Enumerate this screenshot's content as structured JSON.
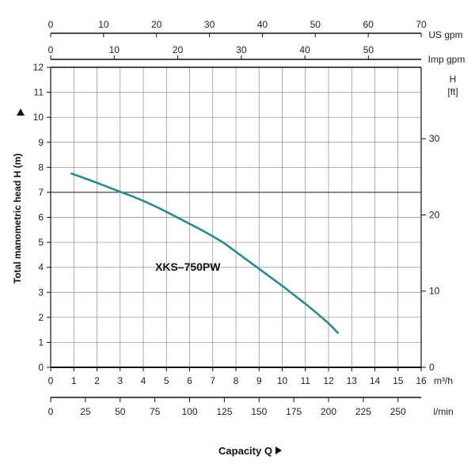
{
  "chart_data": {
    "type": "line",
    "model_label": "XKS–750PW",
    "xlabel": "Capacity Q",
    "ylabel": "Total manometric head H (m)",
    "colors": {
      "curve": "#2a8a8c",
      "grid": "#888888",
      "axis": "#111111"
    },
    "xlim": [
      0,
      16
    ],
    "ylim": [
      0,
      12
    ],
    "grid": true,
    "x_unit": "m³/h",
    "x_ticks": [
      "0",
      "1",
      "2",
      "3",
      "4",
      "5",
      "6",
      "7",
      "8",
      "9",
      "10",
      "11",
      "12",
      "13",
      "14",
      "15",
      "16"
    ],
    "y_ticks": [
      "0",
      "1",
      "2",
      "3",
      "4",
      "5",
      "6",
      "7",
      "8",
      "9",
      "10",
      "11",
      "12"
    ],
    "lmin_unit": "l/min",
    "lmin_ticks": [
      "0",
      "25",
      "50",
      "75",
      "100",
      "125",
      "150",
      "175",
      "200",
      "225",
      "250"
    ],
    "usgpm_unit": "US gpm",
    "usgpm_ticks": [
      "0",
      "10",
      "20",
      "30",
      "40",
      "50",
      "60",
      "70"
    ],
    "impgpm_unit": "Imp gpm",
    "impgpm_ticks": [
      "0",
      "10",
      "20",
      "30",
      "40",
      "50"
    ],
    "ft_unit_line1": "H",
    "ft_unit_line2": "[ft]",
    "ft_ticks": [
      "0",
      "10",
      "20",
      "30"
    ],
    "series": [
      {
        "x": [
          0.9,
          1.5,
          2.0,
          2.5,
          3.0,
          3.5,
          4.0,
          4.5,
          5.0,
          5.5,
          6.0,
          6.5,
          7.0,
          7.5,
          8.0,
          8.5,
          9.0,
          9.5,
          10.0,
          10.5,
          11.0,
          11.5,
          12.0,
          12.4
        ],
        "y": [
          7.75,
          7.55,
          7.38,
          7.2,
          7.02,
          6.85,
          6.66,
          6.45,
          6.22,
          5.98,
          5.74,
          5.5,
          5.24,
          4.96,
          4.62,
          4.28,
          3.94,
          3.6,
          3.26,
          2.9,
          2.54,
          2.16,
          1.76,
          1.38
        ]
      }
    ]
  }
}
